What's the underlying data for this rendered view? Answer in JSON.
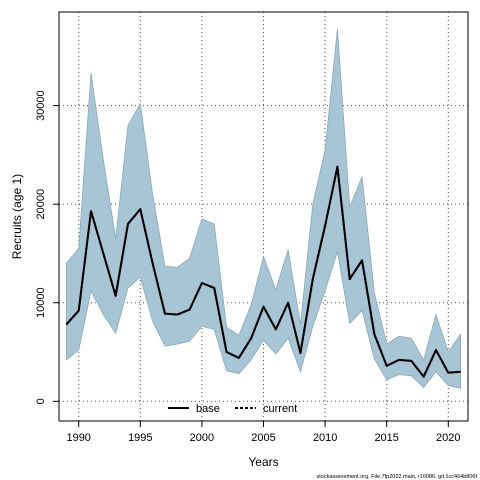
{
  "chart_data": {
    "type": "area",
    "xlabel": "Years",
    "ylabel": "Recruits (age 1)",
    "xlim": [
      1988.4,
      2021.6
    ],
    "ylim": [
      -2000,
      39500
    ],
    "x_ticks": [
      1990,
      1995,
      2000,
      2005,
      2010,
      2015,
      2020
    ],
    "x_tick_labels": [
      "1990",
      "1995",
      "2000",
      "2005",
      "2010",
      "2015",
      "2020"
    ],
    "y_ticks": [
      0,
      10000,
      20000,
      30000
    ],
    "y_tick_labels": [
      "0",
      "10000",
      "20000",
      "30000"
    ],
    "grid": true,
    "legend_position": "bottom-center",
    "colors": {
      "band": "#a8c5d5",
      "band_edge": "#8aa9b8",
      "line": "#000000"
    },
    "x": [
      1989,
      1990,
      1991,
      1992,
      1993,
      1994,
      1995,
      1996,
      1997,
      1998,
      1999,
      2000,
      2001,
      2002,
      2003,
      2004,
      2005,
      2006,
      2007,
      2008,
      2009,
      2010,
      2011,
      2012,
      2013,
      2014,
      2015,
      2016,
      2017,
      2018,
      2019,
      2020,
      2021
    ],
    "band_upper": [
      14000,
      15500,
      33300,
      24500,
      16500,
      28000,
      30200,
      21000,
      13700,
      13600,
      14500,
      18500,
      18000,
      7500,
      6700,
      9800,
      14700,
      11300,
      15400,
      7800,
      20000,
      25500,
      37800,
      19700,
      22800,
      11000,
      5800,
      6600,
      6400,
      4200,
      8800,
      5000,
      6800
    ],
    "band_lower": [
      4200,
      5200,
      11200,
      8800,
      6900,
      11500,
      12600,
      8100,
      5600,
      5800,
      6100,
      7600,
      7300,
      3100,
      2800,
      4200,
      6200,
      4800,
      6400,
      3000,
      7600,
      11200,
      15200,
      7900,
      9200,
      4300,
      2200,
      2700,
      2600,
      1400,
      3000,
      1600,
      1300
    ],
    "series": [
      {
        "name": "base",
        "style": "solid",
        "values": [
          7800,
          9200,
          19300,
          15000,
          10700,
          18000,
          19500,
          14000,
          8900,
          8800,
          9300,
          12000,
          11500,
          5000,
          4400,
          6400,
          9600,
          7300,
          10000,
          4900,
          12400,
          17800,
          23800,
          12400,
          14300,
          6800,
          3600,
          4200,
          4100,
          2500,
          5200,
          2900,
          3000
        ]
      },
      {
        "name": "current",
        "style": "dashed",
        "values": [
          7800,
          9200,
          19300,
          15000,
          10700,
          18000,
          19500,
          14000,
          8900,
          8800,
          9300,
          12000,
          11500,
          5000,
          4400,
          6400,
          9600,
          7300,
          10000,
          4900,
          12400,
          17800,
          23800,
          12400,
          14300,
          6800,
          3600,
          4200,
          4100,
          2500,
          5200,
          2900,
          3000
        ]
      }
    ]
  },
  "legend": [
    {
      "label": "base",
      "style": "solid"
    },
    {
      "label": "current",
      "style": "dashed"
    }
  ],
  "footer": "stockassessment.org, File.7fp2022.main, r16086, git:1cc464b806f"
}
